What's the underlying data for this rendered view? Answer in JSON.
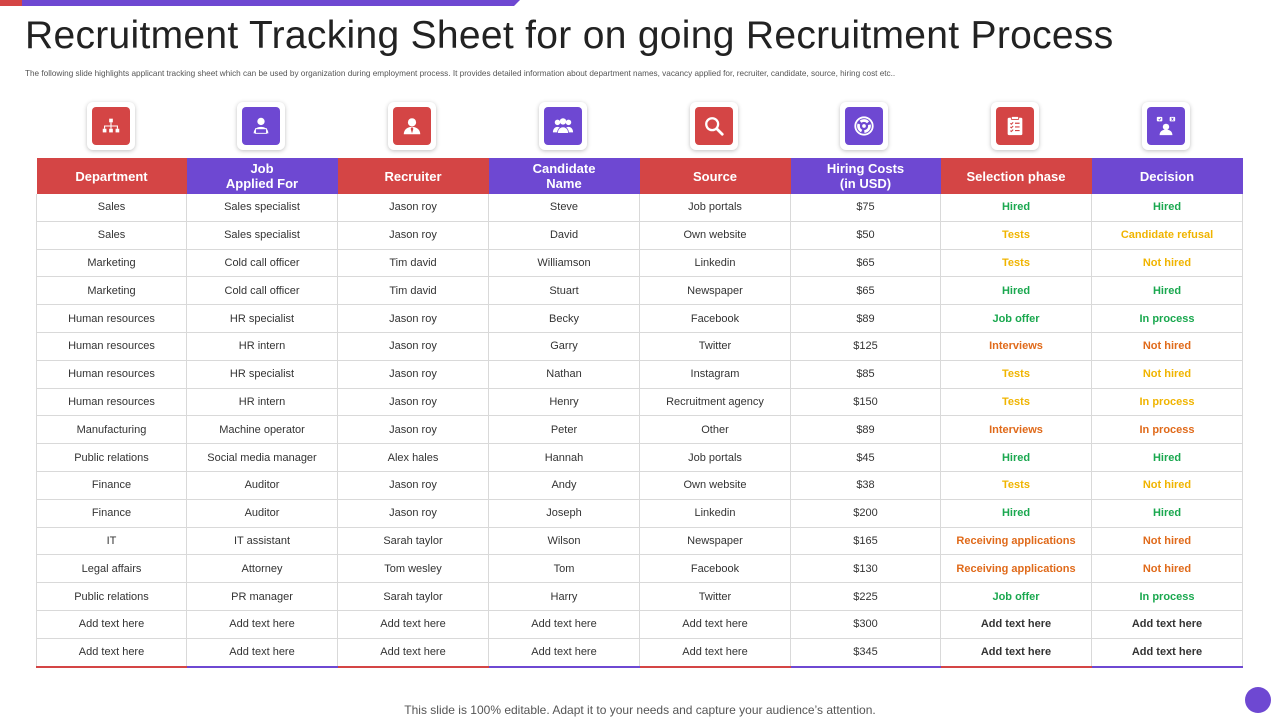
{
  "title": "Recruitment Tracking Sheet for on going Recruitment Process",
  "subtitle": "The following slide highlights applicant tracking sheet which can be used by organization during employment process. It provides detailed information about department names, vacancy applied for, recruiter, candidate, source, hiring cost etc..",
  "colors": {
    "red": "#d44545",
    "purple": "#6e48d2",
    "green": "#1aa84f",
    "yellow": "#f0b400",
    "orange": "#e06a1a",
    "dark": "#333333"
  },
  "icons": [
    "org-chart-icon",
    "job-seeker-icon",
    "recruiter-icon",
    "candidates-group-icon",
    "magnifier-icon",
    "pie-cost-icon",
    "clipboard-checklist-icon",
    "decision-icon"
  ],
  "headers": [
    [
      "Department"
    ],
    [
      "Job",
      "Applied For"
    ],
    [
      "Recruiter"
    ],
    [
      "Candidate",
      "Name"
    ],
    [
      "Source"
    ],
    [
      "Hiring Costs",
      "(in USD)"
    ],
    [
      "Selection phase"
    ],
    [
      "Decision"
    ]
  ],
  "rows": [
    {
      "department": "Sales",
      "job": "Sales specialist",
      "recruiter": "Jason roy",
      "candidate": "Steve",
      "source": "Job portals",
      "cost": "$75",
      "phase": "Hired",
      "phase_color": "green",
      "decision": "Hired",
      "decision_color": "green"
    },
    {
      "department": "Sales",
      "job": "Sales specialist",
      "recruiter": "Jason roy",
      "candidate": "David",
      "source": "Own website",
      "cost": "$50",
      "phase": "Tests",
      "phase_color": "yellow",
      "decision": "Candidate refusal",
      "decision_color": "yellow"
    },
    {
      "department": "Marketing",
      "job": "Cold call officer",
      "recruiter": "Tim david",
      "candidate": "Williamson",
      "source": "Linkedin",
      "cost": "$65",
      "phase": "Tests",
      "phase_color": "yellow",
      "decision": "Not hired",
      "decision_color": "yellow"
    },
    {
      "department": "Marketing",
      "job": "Cold call officer",
      "recruiter": "Tim david",
      "candidate": "Stuart",
      "source": "Newspaper",
      "cost": "$65",
      "phase": "Hired",
      "phase_color": "green",
      "decision": "Hired",
      "decision_color": "green"
    },
    {
      "department": "Human resources",
      "job": "HR specialist",
      "recruiter": "Jason roy",
      "candidate": "Becky",
      "source": "Facebook",
      "cost": "$89",
      "phase": "Job offer",
      "phase_color": "green",
      "decision": "In process",
      "decision_color": "green"
    },
    {
      "department": "Human resources",
      "job": "HR intern",
      "recruiter": "Jason roy",
      "candidate": "Garry",
      "source": "Twitter",
      "cost": "$125",
      "phase": "Interviews",
      "phase_color": "orange",
      "decision": "Not hired",
      "decision_color": "orange"
    },
    {
      "department": "Human resources",
      "job": "HR specialist",
      "recruiter": "Jason roy",
      "candidate": "Nathan",
      "source": "Instagram",
      "cost": "$85",
      "phase": "Tests",
      "phase_color": "yellow",
      "decision": "Not hired",
      "decision_color": "yellow"
    },
    {
      "department": "Human resources",
      "job": "HR intern",
      "recruiter": "Jason roy",
      "candidate": "Henry",
      "source": "Recruitment agency",
      "cost": "$150",
      "phase": "Tests",
      "phase_color": "yellow",
      "decision": "In process",
      "decision_color": "yellow"
    },
    {
      "department": "Manufacturing",
      "job": "Machine operator",
      "recruiter": "Jason roy",
      "candidate": "Peter",
      "source": "Other",
      "cost": "$89",
      "phase": "Interviews",
      "phase_color": "orange",
      "decision": "In process",
      "decision_color": "orange"
    },
    {
      "department": "Public relations",
      "job": "Social media manager",
      "recruiter": "Alex hales",
      "candidate": "Hannah",
      "source": "Job portals",
      "cost": "$45",
      "phase": "Hired",
      "phase_color": "green",
      "decision": "Hired",
      "decision_color": "green"
    },
    {
      "department": "Finance",
      "job": "Auditor",
      "recruiter": "Jason roy",
      "candidate": "Andy",
      "source": "Own website",
      "cost": "$38",
      "phase": "Tests",
      "phase_color": "yellow",
      "decision": "Not hired",
      "decision_color": "yellow"
    },
    {
      "department": "Finance",
      "job": "Auditor",
      "recruiter": "Jason roy",
      "candidate": "Joseph",
      "source": "Linkedin",
      "cost": "$200",
      "phase": "Hired",
      "phase_color": "green",
      "decision": "Hired",
      "decision_color": "green"
    },
    {
      "department": "IT",
      "job": "IT assistant",
      "recruiter": "Sarah taylor",
      "candidate": "Wilson",
      "source": "Newspaper",
      "cost": "$165",
      "phase": "Receiving applications",
      "phase_color": "orange",
      "decision": "Not hired",
      "decision_color": "orange"
    },
    {
      "department": "Legal affairs",
      "job": "Attorney",
      "recruiter": "Tom wesley",
      "candidate": "Tom",
      "source": "Facebook",
      "cost": "$130",
      "phase": "Receiving applications",
      "phase_color": "orange",
      "decision": "Not hired",
      "decision_color": "orange"
    },
    {
      "department": "Public relations",
      "job": "PR manager",
      "recruiter": "Sarah taylor",
      "candidate": "Harry",
      "source": "Twitter",
      "cost": "$225",
      "phase": "Job offer",
      "phase_color": "green",
      "decision": "In process",
      "decision_color": "green"
    },
    {
      "department": "Add text here",
      "job": "Add text here",
      "recruiter": "Add text here",
      "candidate": "Add text here",
      "source": "Add text here",
      "cost": "$300",
      "phase": "Add text here",
      "phase_color": "dark",
      "decision": "Add text here",
      "decision_color": "dark"
    },
    {
      "department": "Add text here",
      "job": "Add text here",
      "recruiter": "Add text here",
      "candidate": "Add text here",
      "source": "Add text here",
      "cost": "$345",
      "phase": "Add text here",
      "phase_color": "dark",
      "decision": "Add text here",
      "decision_color": "dark"
    }
  ],
  "footer": "This slide is 100% editable. Adapt it to your needs and capture your audience’s attention."
}
